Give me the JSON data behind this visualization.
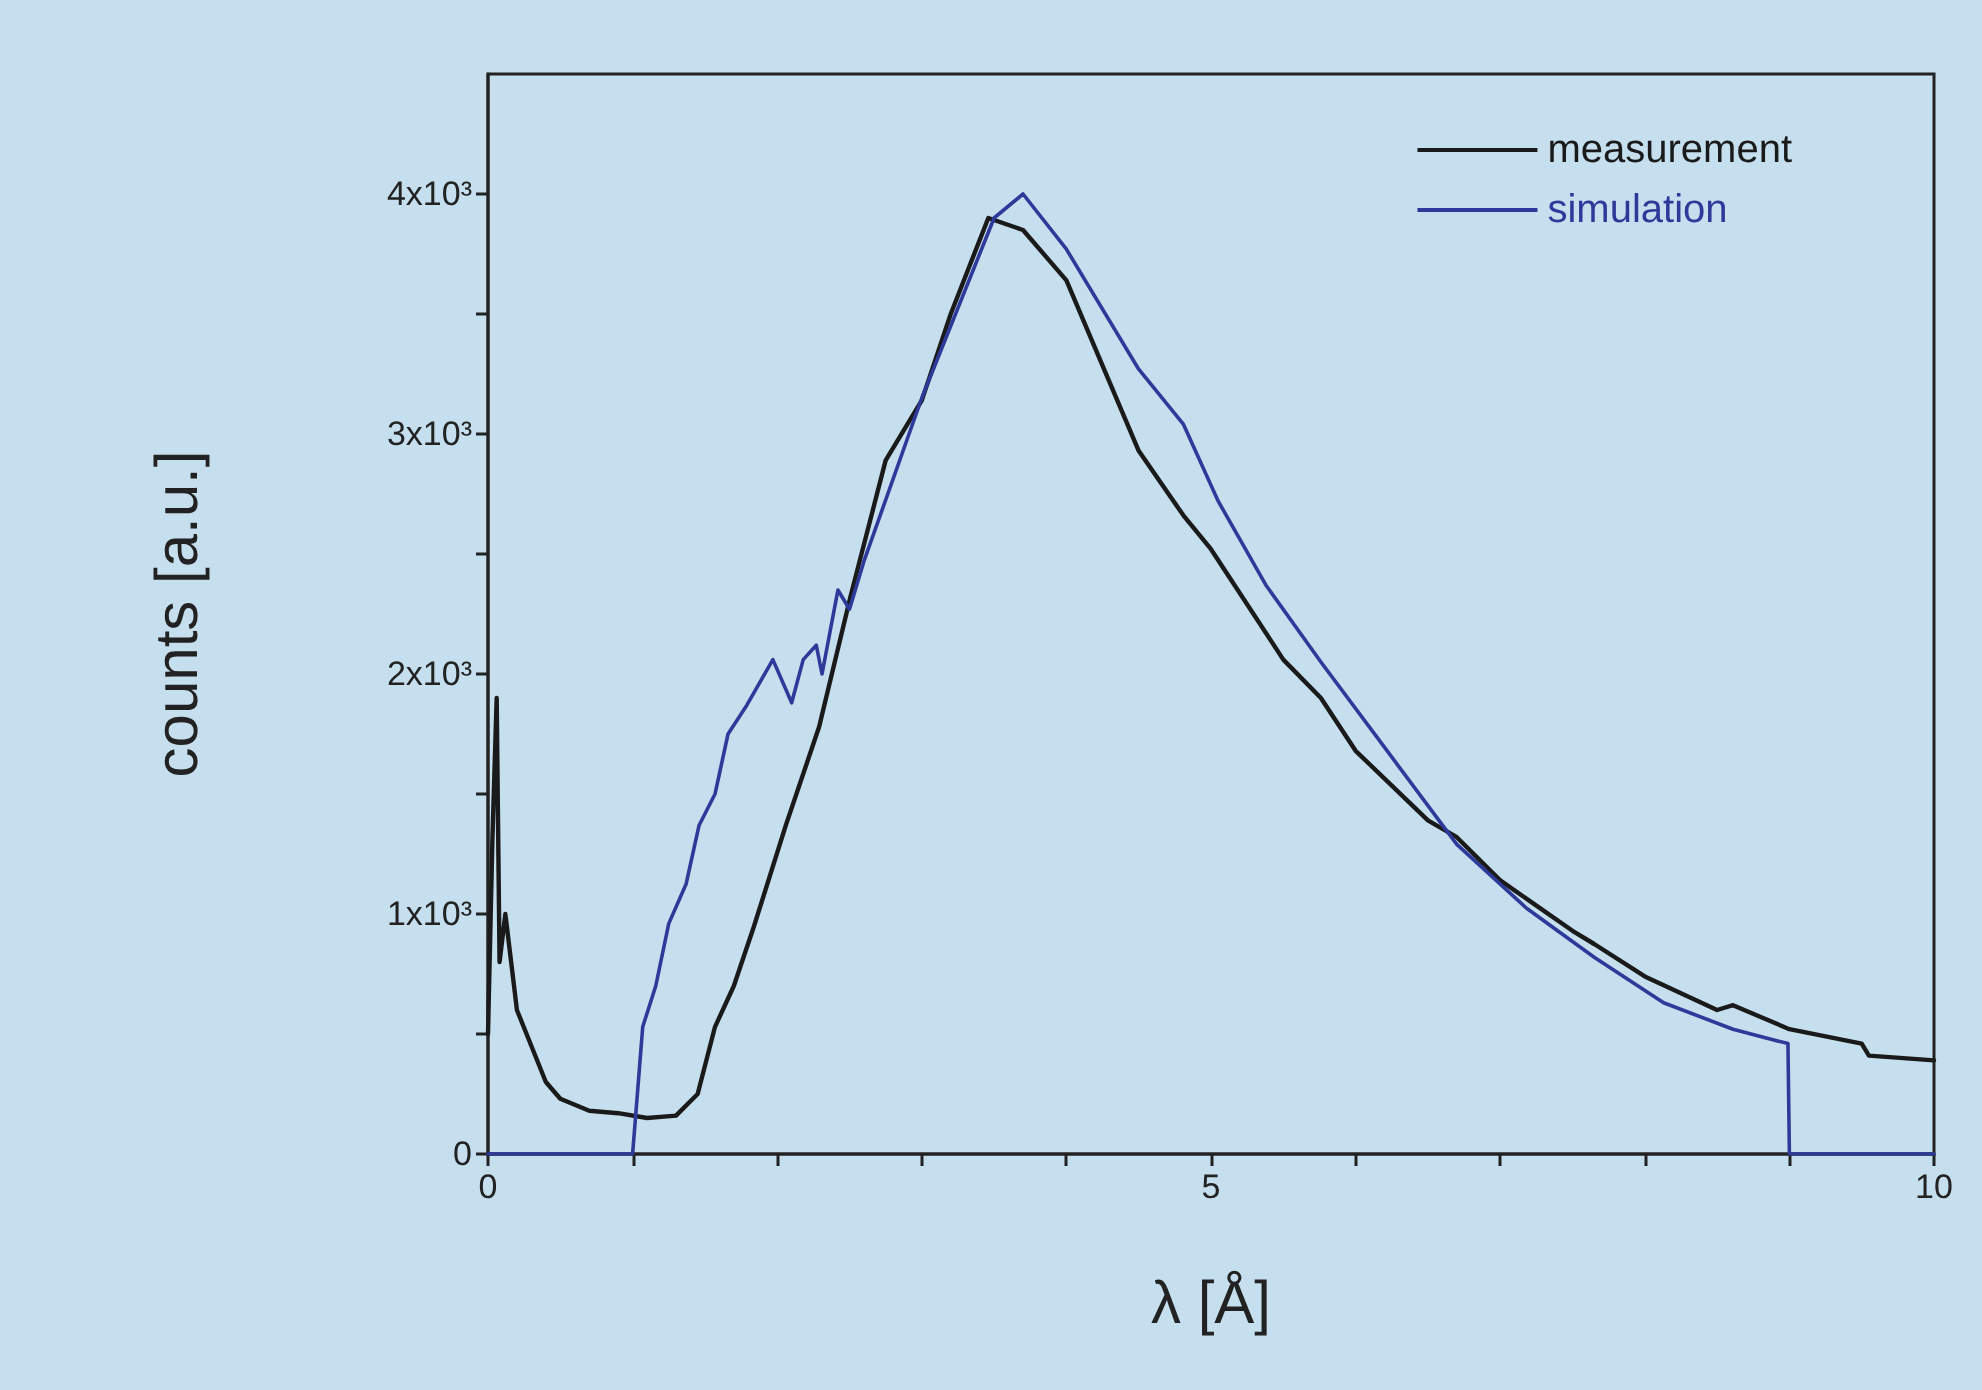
{
  "chart_data": {
    "type": "line",
    "xlabel": "λ [Å]",
    "ylabel": "counts [a.u.]",
    "xlim": [
      0,
      10
    ],
    "ylim": [
      0,
      4500
    ],
    "xticks": [
      0,
      {
        "value": 1,
        "label": null
      },
      {
        "value": 2,
        "label": null
      },
      {
        "value": 3,
        "label": null
      },
      {
        "value": 4,
        "label": null
      },
      5,
      {
        "value": 6,
        "label": null
      },
      {
        "value": 7,
        "label": null
      },
      {
        "value": 8,
        "label": null
      },
      {
        "value": 9,
        "label": null
      },
      10
    ],
    "yticks": [
      0,
      {
        "value": 500,
        "label": null
      },
      {
        "value": 1000,
        "label": "1x10³"
      },
      {
        "value": 1500,
        "label": null
      },
      {
        "value": 2000,
        "label": "2x10³"
      },
      {
        "value": 2500,
        "label": null
      },
      {
        "value": 3000,
        "label": "3x10³"
      },
      {
        "value": 3500,
        "label": null
      },
      {
        "value": 4000,
        "label": "4x10³"
      }
    ],
    "legend": "top right",
    "grid": false,
    "marker": "none",
    "line_style": "solid",
    "series": [
      {
        "name": "measurement",
        "color": "#1a1a1a",
        "x": [
          0,
          0.03,
          0.06,
          0.08,
          0.12,
          0.2,
          0.3,
          0.4,
          0.5,
          0.7,
          0.9,
          1.1,
          1.3,
          1.45,
          1.57,
          1.7,
          1.84,
          2.06,
          2.29,
          2.51,
          2.75,
          3,
          3.2,
          3.46,
          3.7,
          4,
          4.5,
          4.81,
          5,
          5.5,
          5.76,
          6,
          6.5,
          6.7,
          7,
          7.5,
          7.65,
          8,
          8.5,
          8.61,
          9,
          9.5,
          9.55,
          10
        ],
        "values": [
          500,
          1300,
          1900,
          800,
          1000,
          600,
          450,
          300,
          230,
          180,
          170,
          150,
          160,
          250,
          530,
          700,
          950,
          1370,
          1780,
          2330,
          2890,
          3140,
          3500,
          3900,
          3850,
          3640,
          2930,
          2660,
          2520,
          2060,
          1900,
          1680,
          1390,
          1320,
          1140,
          930,
          875,
          740,
          600,
          620,
          520,
          460,
          410,
          390
        ]
      },
      {
        "name": "simulation",
        "color": "#2e3a9a",
        "x": [
          0,
          1,
          1.07,
          1.16,
          1.25,
          1.37,
          1.46,
          1.57,
          1.66,
          1.79,
          1.97,
          2.1,
          2.18,
          2.27,
          2.31,
          2.42,
          2.5,
          2.6,
          3,
          3.5,
          3.7,
          4,
          4.5,
          4.81,
          5.05,
          5.38,
          5.76,
          6.23,
          6.7,
          7.18,
          7.65,
          8.13,
          8.61,
          8.99,
          9,
          10
        ],
        "values": [
          0,
          0,
          530,
          700,
          960,
          1125,
          1370,
          1500,
          1750,
          1870,
          2060,
          1880,
          2060,
          2120,
          2000,
          2350,
          2270,
          2470,
          3150,
          3900,
          4000,
          3770,
          3270,
          3040,
          2720,
          2370,
          2050,
          1670,
          1290,
          1025,
          820,
          630,
          520,
          460,
          0,
          0
        ]
      }
    ]
  }
}
